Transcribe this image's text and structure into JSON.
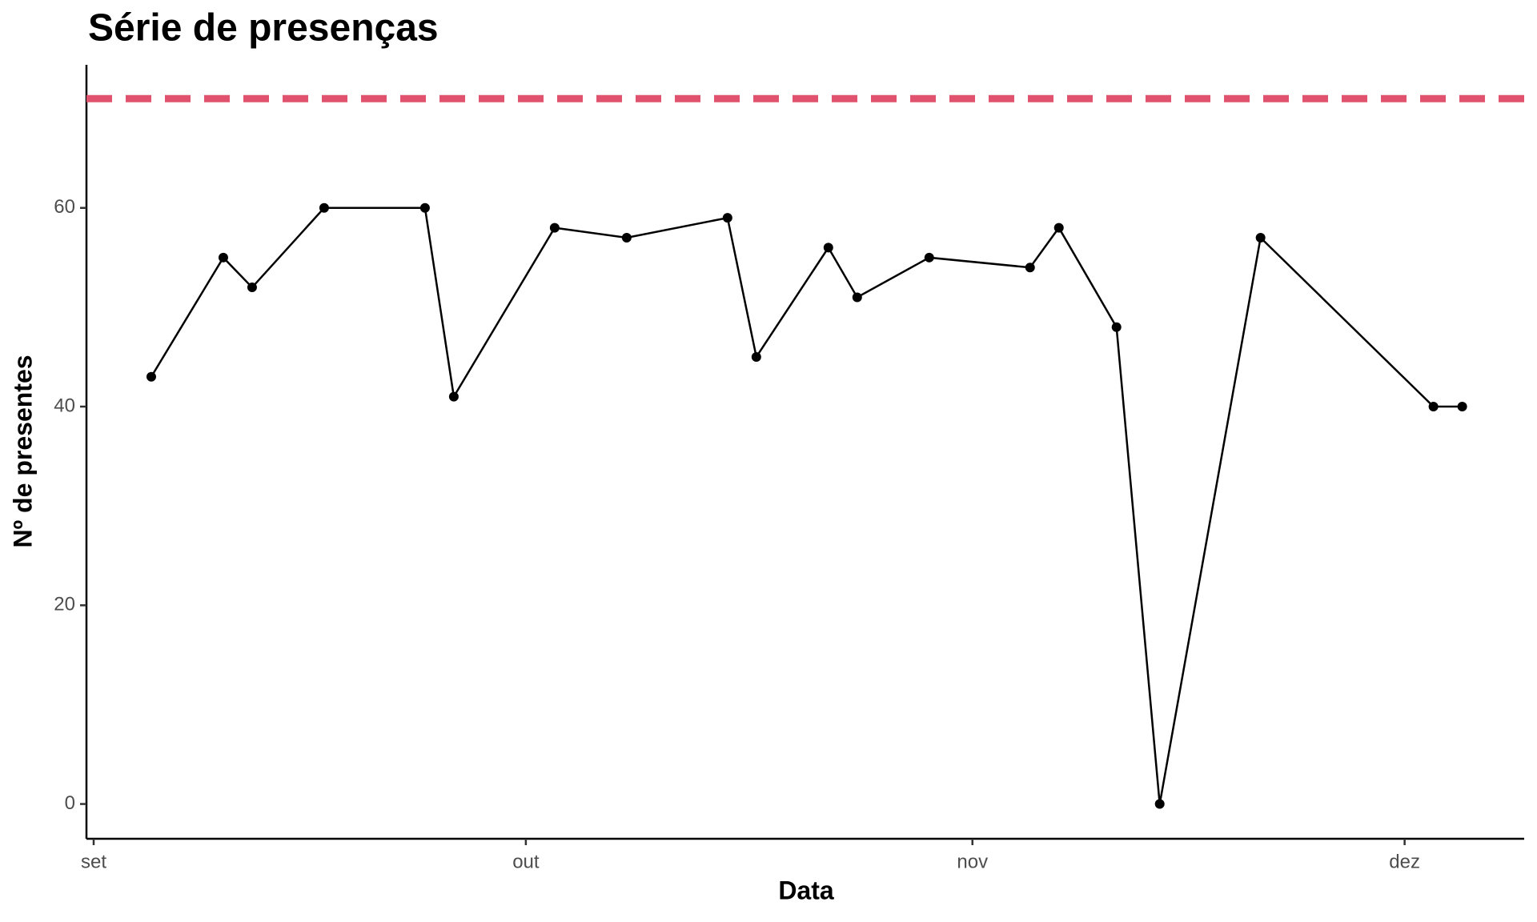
{
  "chart_data": {
    "type": "line",
    "title": "Série de presenças",
    "x_label": "Data",
    "y_label": "Nº de presentes",
    "x": [
      4,
      9,
      11,
      16,
      23,
      25,
      32,
      37,
      44,
      46,
      51,
      53,
      58,
      65,
      67,
      71,
      74,
      81,
      93,
      95
    ],
    "values": [
      43,
      55,
      52,
      60,
      60,
      41,
      58,
      57,
      59,
      45,
      56,
      51,
      55,
      54,
      58,
      48,
      0,
      57,
      40,
      40
    ],
    "color": "#000000",
    "xlim": [
      -0.5,
      99.3
    ],
    "xticks": [
      {
        "value": 0,
        "label": "set"
      },
      {
        "value": 30,
        "label": "out"
      },
      {
        "value": 61,
        "label": "nov"
      },
      {
        "value": 91,
        "label": "dez"
      }
    ],
    "ylim": [
      -3.5,
      74.4
    ],
    "yticks": [
      0,
      20,
      40,
      60
    ],
    "reference_line": 71,
    "reference_color": "#e0526e",
    "grid": false
  }
}
